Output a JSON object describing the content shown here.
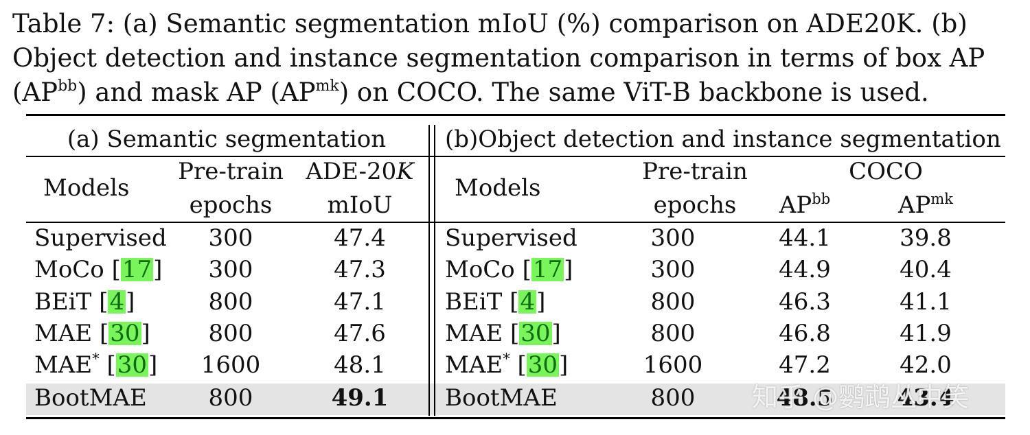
{
  "caption": {
    "line1": "Table 7: (a) Semantic segmentation mIoU (%) comparison on ADE20K. (b)",
    "line2": "Object detection and instance segmentation comparison in terms of box AP",
    "line3_a": "(AP",
    "line3_sup1": "bb",
    "line3_b": ") and mask AP (AP",
    "line3_sup2": "mk",
    "line3_c": ") on COCO. The same ViT-B backbone is used."
  },
  "left": {
    "title": "(a) Semantic segmentation",
    "hdr_models": "Models",
    "hdr_pretrain_1": "Pre-train",
    "hdr_pretrain_2": "epochs",
    "hdr_ade_1": "ADE-20",
    "hdr_ade_k": "K",
    "hdr_ade_2": "mIoU",
    "rows": [
      {
        "model": "Supervised",
        "cite": "",
        "star": "",
        "epochs": "300",
        "miou": "47.4"
      },
      {
        "model": "MoCo",
        "cite": "17",
        "star": "",
        "epochs": "300",
        "miou": "47.3"
      },
      {
        "model": "BEiT",
        "cite": "4",
        "star": "",
        "epochs": "800",
        "miou": "47.1"
      },
      {
        "model": "MAE",
        "cite": "30",
        "star": "",
        "epochs": "800",
        "miou": "47.6"
      },
      {
        "model": "MAE",
        "cite": "30",
        "star": "*",
        "epochs": "1600",
        "miou": "48.1"
      },
      {
        "model": "BootMAE",
        "cite": "",
        "star": "",
        "epochs": "800",
        "miou": "49.1"
      }
    ]
  },
  "right": {
    "title": "(b)Object detection and instance segmentation",
    "hdr_models": "Models",
    "hdr_pretrain_1": "Pre-train",
    "hdr_pretrain_2": "epochs",
    "hdr_coco": "COCO",
    "hdr_apbb": "AP",
    "hdr_apbb_sup": "bb",
    "hdr_apmk": "AP",
    "hdr_apmk_sup": "mk",
    "rows": [
      {
        "model": "Supervised",
        "cite": "",
        "star": "",
        "epochs": "300",
        "apbb": "44.1",
        "apmk": "39.8"
      },
      {
        "model": "MoCo",
        "cite": "17",
        "star": "",
        "epochs": "300",
        "apbb": "44.9",
        "apmk": "40.4"
      },
      {
        "model": "BEiT",
        "cite": "4",
        "star": "",
        "epochs": "800",
        "apbb": "46.3",
        "apmk": "41.1"
      },
      {
        "model": "MAE",
        "cite": "30",
        "star": "",
        "epochs": "800",
        "apbb": "46.8",
        "apmk": "41.9"
      },
      {
        "model": "MAE",
        "cite": "30",
        "star": "*",
        "epochs": "1600",
        "apbb": "47.2",
        "apmk": "42.0"
      },
      {
        "model": "BootMAE",
        "cite": "",
        "star": "",
        "epochs": "800",
        "apbb": "48.5",
        "apmk": "43.4"
      }
    ]
  },
  "watermark": "知乎 @鹦鹉丛中笑"
}
